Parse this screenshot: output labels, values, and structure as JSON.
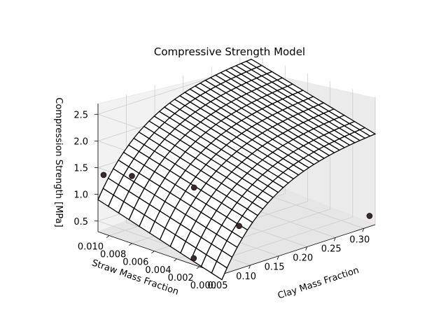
{
  "chart_data": {
    "type": "surface",
    "title": "Compressive Strength Model",
    "xlabel": "Clay Mass Fraction",
    "ylabel": "Straw Mass Fraction",
    "zlabel": "Compression Strength [MPa]",
    "x_range": [
      0.05,
      0.32
    ],
    "y_range": [
      0.0,
      0.011
    ],
    "z_range": [
      0.3,
      2.7
    ],
    "x_ticks": [
      "0.05",
      "0.10",
      "0.15",
      "0.20",
      "0.25",
      "0.30"
    ],
    "y_ticks": [
      "0.000",
      "0.002",
      "0.004",
      "0.006",
      "0.008",
      "0.010"
    ],
    "z_ticks": [
      "0.5",
      "1.0",
      "1.5",
      "2.0",
      "2.5"
    ],
    "surface_corners": {
      "clay_0.05_straw_0.000": 0.2,
      "clay_0.32_straw_0.000": 2.0,
      "clay_0.05_straw_0.011": 0.9,
      "clay_0.32_straw_0.011": 2.6
    },
    "points": [
      {
        "x": 0.05,
        "y": 0.0105,
        "z": 1.4
      },
      {
        "x": 0.08,
        "y": 0.0095,
        "z": 1.35
      },
      {
        "x": 0.12,
        "y": 0.006,
        "z": 1.25
      },
      {
        "x": 0.13,
        "y": 0.0025,
        "z": 0.75
      },
      {
        "x": 0.06,
        "y": 0.003,
        "z": 0.35
      },
      {
        "x": 0.31,
        "y": 0.0,
        "z": 0.5
      }
    ],
    "grid": true
  }
}
